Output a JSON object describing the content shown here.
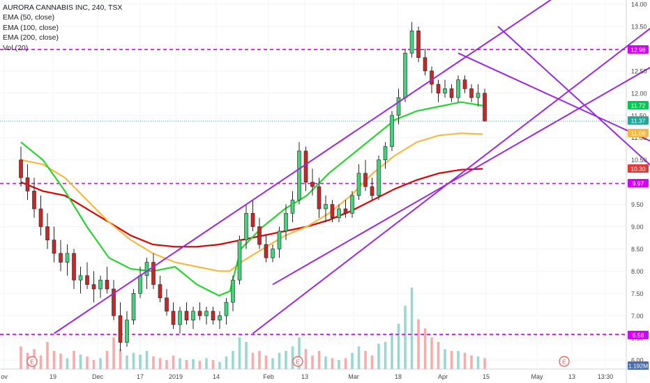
{
  "chart_data": {
    "type": "candlestick",
    "legend": {
      "title": "AURORA CANNABIS INC, 240, TSX",
      "lines": [
        "EMA (50, close)",
        "EMA (100, close)",
        "EMA (200, close)",
        "Vol (20)"
      ]
    },
    "y_axis": {
      "position": "right",
      "range": [
        5.8,
        14.0
      ],
      "ticks": [
        "6.00",
        "6.50",
        "7.00",
        "7.50",
        "8.00",
        "8.50",
        "9.00",
        "9.50",
        "10.00",
        "10.50",
        "11.00",
        "11.50",
        "12.00",
        "12.50",
        "13.00",
        "13.50",
        "14.00"
      ]
    },
    "x_axis": {
      "ticks": [
        "ov",
        "19",
        "Dec",
        "17",
        "2019",
        "14",
        "Feb",
        "13",
        "Mar",
        "18",
        "Apr",
        "15",
        "May",
        "13",
        "13:30"
      ]
    },
    "price_labels": [
      {
        "text": "12.98",
        "color": "#d500f9"
      },
      {
        "text": "11.72",
        "color": "#00c853"
      },
      {
        "text": "11.37",
        "color": "#26a69a"
      },
      {
        "text": "11.08",
        "color": "#f5b940"
      },
      {
        "text": "10.30",
        "color": "#e53935"
      },
      {
        "text": "9.97",
        "color": "#d500f9"
      },
      {
        "text": "6.58",
        "color": "#d500f9"
      },
      {
        "text": "1.192M",
        "color": "#4a6ea9"
      }
    ],
    "horizontal_levels": [
      12.98,
      9.97,
      6.58
    ],
    "last_price": 11.37,
    "earnings_markers": [
      "E",
      "E",
      "E",
      "E"
    ],
    "channels": [
      {
        "name": "",
        "color": "#9c27e0",
        "lines": [
          [
            [
              5.0,
              6.6
            ],
            [
              80.0,
              14.1
            ]
          ],
          [
            [
              35.0,
              6.6
            ],
            [
              98.0,
              13.8
            ]
          ]
        ]
      },
      {
        "name": "",
        "color": "#9c27e0",
        "lines": [
          [
            [
              38.0,
              7.7
            ],
            [
              104.0,
              13.35
            ]
          ]
        ]
      },
      {
        "name": "",
        "color": "#9c27e0",
        "lines": [
          [
            [
              66.0,
              12.9
            ],
            [
              109.0,
              9.97
            ]
          ],
          [
            [
              72.0,
              13.5
            ],
            [
              103.0,
              9.3
            ]
          ]
        ]
      }
    ],
    "ema_50": [
      [
        0,
        10.9
      ],
      [
        4,
        10.5
      ],
      [
        8,
        9.8
      ],
      [
        12,
        9.0
      ],
      [
        16,
        8.3
      ],
      [
        20,
        8.05
      ],
      [
        24,
        8.0
      ],
      [
        28,
        8.1
      ],
      [
        32,
        7.7
      ],
      [
        36,
        7.45
      ],
      [
        38,
        7.55
      ],
      [
        40,
        8.5
      ],
      [
        44,
        9.0
      ],
      [
        48,
        9.4
      ],
      [
        52,
        9.7
      ],
      [
        56,
        10.2
      ],
      [
        60,
        10.6
      ],
      [
        64,
        11.0
      ],
      [
        68,
        11.4
      ],
      [
        72,
        11.6
      ],
      [
        76,
        11.7
      ],
      [
        80,
        11.8
      ],
      [
        84,
        11.72
      ]
    ],
    "ema_100": [
      [
        0,
        10.5
      ],
      [
        4,
        10.4
      ],
      [
        8,
        10.1
      ],
      [
        12,
        9.6
      ],
      [
        16,
        9.1
      ],
      [
        20,
        8.7
      ],
      [
        24,
        8.4
      ],
      [
        28,
        8.2
      ],
      [
        32,
        8.1
      ],
      [
        36,
        8.0
      ],
      [
        38,
        8.0
      ],
      [
        40,
        8.2
      ],
      [
        44,
        8.5
      ],
      [
        48,
        8.8
      ],
      [
        52,
        9.0
      ],
      [
        56,
        9.3
      ],
      [
        60,
        9.7
      ],
      [
        64,
        10.2
      ],
      [
        68,
        10.6
      ],
      [
        72,
        10.9
      ],
      [
        76,
        11.05
      ],
      [
        80,
        11.1
      ],
      [
        84,
        11.08
      ]
    ],
    "ema_200": [
      [
        0,
        10.0
      ],
      [
        4,
        9.8
      ],
      [
        8,
        9.7
      ],
      [
        12,
        9.4
      ],
      [
        16,
        9.1
      ],
      [
        20,
        8.8
      ],
      [
        24,
        8.6
      ],
      [
        28,
        8.55
      ],
      [
        32,
        8.55
      ],
      [
        36,
        8.6
      ],
      [
        40,
        8.7
      ],
      [
        44,
        8.8
      ],
      [
        48,
        8.9
      ],
      [
        52,
        9.0
      ],
      [
        56,
        9.15
      ],
      [
        60,
        9.35
      ],
      [
        64,
        9.6
      ],
      [
        68,
        9.85
      ],
      [
        72,
        10.05
      ],
      [
        76,
        10.2
      ],
      [
        80,
        10.28
      ],
      [
        84,
        10.3
      ]
    ],
    "candles": [
      [
        10.5,
        10.8,
        9.9,
        10.1
      ],
      [
        10.1,
        10.4,
        9.6,
        9.8
      ],
      [
        9.8,
        10.1,
        9.2,
        9.4
      ],
      [
        9.4,
        9.7,
        8.8,
        9.0
      ],
      [
        9.0,
        9.3,
        8.5,
        8.7
      ],
      [
        8.7,
        9.0,
        8.2,
        8.4
      ],
      [
        8.4,
        8.7,
        8.0,
        8.2
      ],
      [
        8.2,
        8.6,
        7.9,
        8.4
      ],
      [
        8.4,
        8.5,
        7.6,
        7.8
      ],
      [
        7.8,
        8.1,
        7.5,
        7.9
      ],
      [
        7.9,
        8.2,
        7.6,
        7.7
      ],
      [
        7.7,
        8.0,
        7.3,
        7.6
      ],
      [
        7.6,
        7.9,
        7.4,
        7.8
      ],
      [
        7.8,
        8.1,
        7.5,
        7.6
      ],
      [
        7.6,
        7.8,
        6.9,
        7.0
      ],
      [
        7.0,
        7.3,
        6.2,
        6.4
      ],
      [
        6.4,
        7.1,
        6.3,
        6.9
      ],
      [
        6.9,
        7.6,
        6.8,
        7.5
      ],
      [
        7.5,
        8.1,
        7.4,
        7.9
      ],
      [
        7.9,
        8.3,
        7.6,
        8.2
      ],
      [
        8.2,
        8.4,
        7.6,
        7.7
      ],
      [
        7.7,
        7.9,
        7.3,
        7.4
      ],
      [
        7.4,
        7.6,
        7.0,
        7.1
      ],
      [
        7.1,
        7.3,
        6.7,
        6.8
      ],
      [
        6.8,
        7.2,
        6.6,
        7.1
      ],
      [
        7.1,
        7.3,
        6.8,
        6.9
      ],
      [
        6.9,
        7.2,
        6.7,
        7.1
      ],
      [
        7.1,
        7.3,
        6.9,
        7.0
      ],
      [
        7.0,
        7.2,
        6.8,
        7.1
      ],
      [
        7.1,
        7.2,
        6.8,
        6.9
      ],
      [
        6.9,
        7.1,
        6.7,
        7.0
      ],
      [
        7.0,
        7.4,
        6.8,
        7.3
      ],
      [
        7.3,
        7.9,
        7.1,
        7.8
      ],
      [
        7.8,
        8.8,
        7.7,
        8.7
      ],
      [
        8.7,
        9.5,
        8.5,
        9.3
      ],
      [
        9.3,
        9.6,
        8.9,
        9.0
      ],
      [
        9.0,
        9.2,
        8.5,
        8.6
      ],
      [
        8.6,
        8.8,
        8.2,
        8.3
      ],
      [
        8.3,
        8.6,
        8.2,
        8.5
      ],
      [
        8.5,
        9.0,
        8.3,
        8.9
      ],
      [
        8.9,
        9.5,
        8.7,
        9.3
      ],
      [
        9.3,
        9.8,
        9.1,
        9.6
      ],
      [
        9.6,
        10.9,
        9.5,
        10.7
      ],
      [
        10.7,
        10.8,
        9.8,
        10.0
      ],
      [
        10.0,
        10.3,
        9.7,
        9.9
      ],
      [
        9.9,
        10.1,
        9.2,
        9.4
      ],
      [
        9.4,
        9.7,
        9.1,
        9.5
      ],
      [
        9.5,
        9.6,
        9.1,
        9.2
      ],
      [
        9.2,
        9.5,
        9.1,
        9.4
      ],
      [
        9.4,
        9.6,
        9.2,
        9.3
      ],
      [
        9.3,
        9.8,
        9.2,
        9.7
      ],
      [
        9.7,
        10.4,
        9.6,
        10.2
      ],
      [
        10.2,
        10.5,
        9.8,
        9.9
      ],
      [
        9.9,
        10.1,
        9.6,
        9.7
      ],
      [
        9.7,
        10.6,
        9.6,
        10.5
      ],
      [
        10.5,
        10.9,
        10.3,
        10.8
      ],
      [
        10.8,
        11.6,
        10.7,
        11.5
      ],
      [
        11.5,
        12.1,
        11.3,
        11.9
      ],
      [
        11.9,
        13.0,
        11.8,
        12.9
      ],
      [
        12.9,
        13.6,
        12.8,
        13.4
      ],
      [
        13.4,
        13.5,
        12.7,
        12.8
      ],
      [
        12.8,
        13.0,
        12.4,
        12.5
      ],
      [
        12.5,
        12.6,
        12.0,
        12.2
      ],
      [
        12.2,
        12.3,
        11.8,
        12.0
      ],
      [
        12.0,
        12.3,
        11.9,
        12.1
      ],
      [
        12.1,
        12.2,
        11.8,
        11.9
      ],
      [
        11.9,
        12.4,
        11.8,
        12.3
      ],
      [
        12.3,
        12.4,
        12.0,
        12.1
      ],
      [
        12.1,
        12.2,
        11.8,
        11.9
      ],
      [
        11.9,
        12.2,
        11.7,
        12.0
      ],
      [
        12.0,
        12.1,
        11.4,
        11.37
      ]
    ],
    "volume_scale_max": 1.0,
    "volumes": [
      0.25,
      0.18,
      0.22,
      0.15,
      0.3,
      0.2,
      0.17,
      0.12,
      0.2,
      0.16,
      0.14,
      0.1,
      0.12,
      0.2,
      0.35,
      0.22,
      0.15,
      0.18,
      0.16,
      0.2,
      0.14,
      0.12,
      0.1,
      0.15,
      0.12,
      0.1,
      0.11,
      0.09,
      0.12,
      0.1,
      0.08,
      0.14,
      0.2,
      0.35,
      0.3,
      0.18,
      0.2,
      0.15,
      0.12,
      0.18,
      0.2,
      0.25,
      0.35,
      0.22,
      0.15,
      0.2,
      0.14,
      0.12,
      0.1,
      0.12,
      0.18,
      0.25,
      0.2,
      0.15,
      0.28,
      0.3,
      0.4,
      0.5,
      0.7,
      0.9,
      0.55,
      0.45,
      0.35,
      0.3,
      0.22,
      0.2,
      0.2,
      0.18,
      0.15,
      0.14,
      0.12
    ]
  }
}
